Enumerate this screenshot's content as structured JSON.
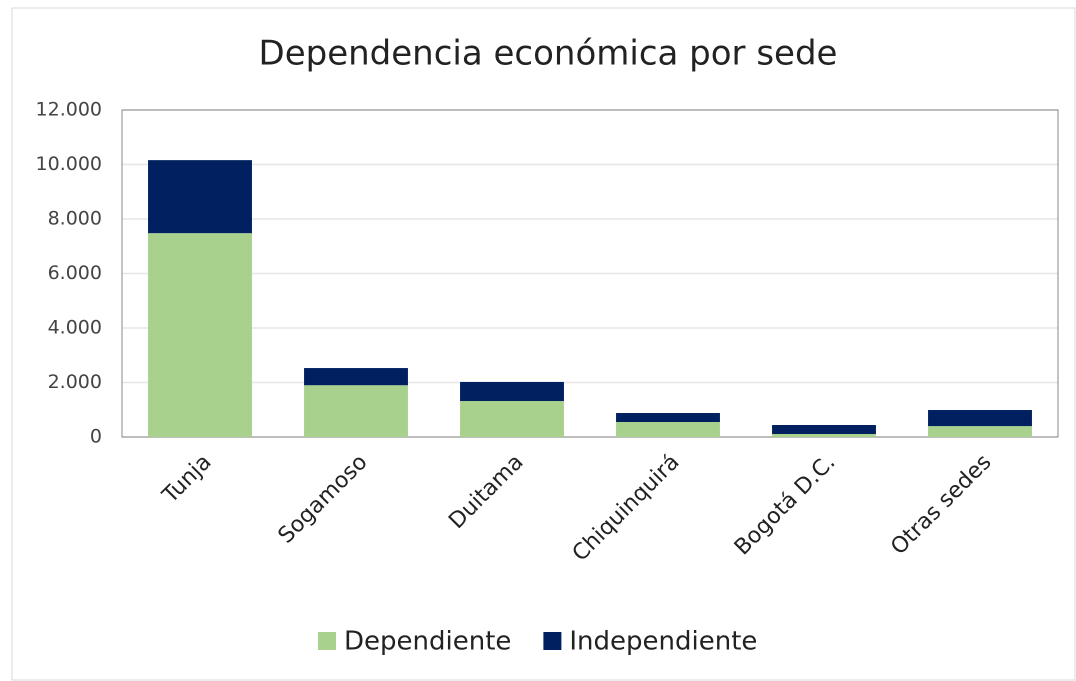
{
  "chart_data": {
    "type": "stacked_bar",
    "title": "Dependencia económica por sede",
    "categories": [
      "Tunja",
      "Sogamoso",
      "Duitama",
      "Chiquinquirá",
      "Bogotá D.C.",
      "Otras sedes"
    ],
    "series": [
      {
        "name": "Dependiente",
        "color": "#a9d18e",
        "values": [
          7480,
          1900,
          1320,
          550,
          110,
          400
        ]
      },
      {
        "name": "Independiente",
        "color": "#002060",
        "values": [
          2680,
          630,
          700,
          330,
          330,
          590
        ]
      }
    ],
    "ylim": [
      0,
      12000
    ],
    "yticks": [
      0,
      {
        "value": 2000,
        "label": "2.000"
      },
      {
        "value": 4000,
        "label": "4.000"
      },
      {
        "value": 6000,
        "label": "6.000"
      },
      {
        "value": 8000,
        "label": "8.000"
      },
      {
        "value": 10000,
        "label": "10.000"
      },
      {
        "value": 12000,
        "label": "12.000"
      }
    ],
    "grid": true,
    "legend": "bottom"
  }
}
